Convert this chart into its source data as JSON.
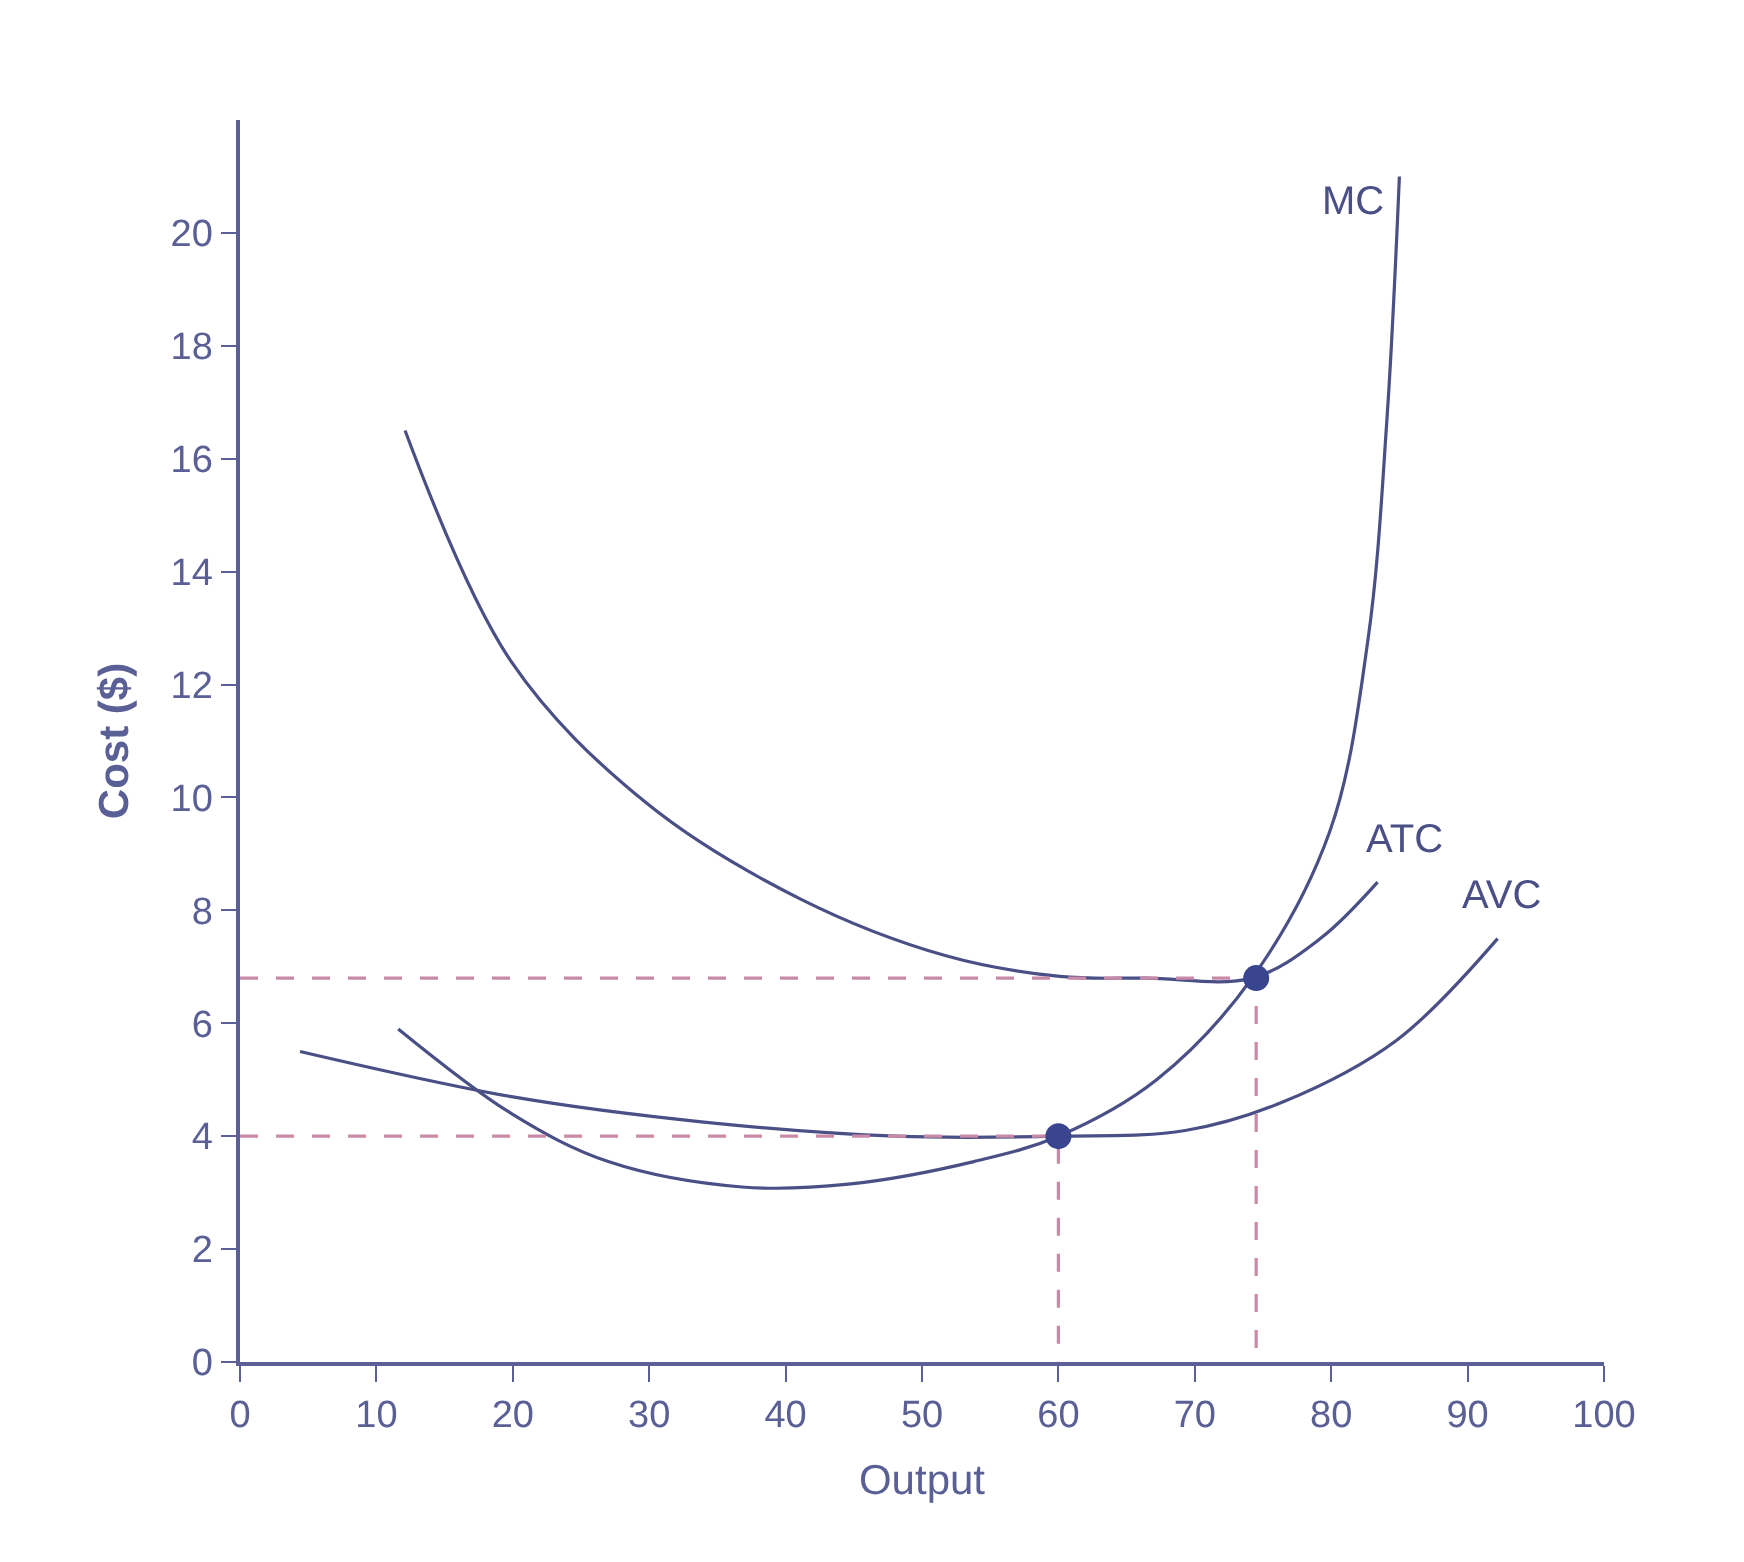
{
  "chart_data": {
    "type": "line",
    "xlabel": "Output",
    "ylabel": "Cost ($)",
    "xlim": [
      0,
      100
    ],
    "ylim": [
      0,
      22
    ],
    "xticks": [
      0,
      10,
      20,
      30,
      40,
      50,
      60,
      70,
      80,
      90,
      100
    ],
    "yticks": [
      0,
      2,
      4,
      6,
      8,
      10,
      12,
      14,
      16,
      18,
      20
    ],
    "legend": false,
    "marker": "none",
    "line_style": "solid",
    "series": [
      {
        "name": "MC",
        "color": "#4a4f86",
        "x": [
          11.6,
          19.9,
          27,
          36.8,
          44.6,
          53.8,
          60,
          67.2,
          74.2,
          79.9,
          82.7,
          84.1,
          85
        ],
        "values": [
          5.9,
          4.4,
          3.55,
          3.1,
          3.15,
          3.55,
          4.0,
          5.0,
          6.8,
          9.4,
          12.8,
          16.75,
          21
        ]
      },
      {
        "name": "ATC",
        "color": "#4a4f86",
        "x": [
          12.1,
          19.9,
          29.8,
          41.1,
          51.7,
          60.1,
          66.5,
          74.2,
          79.2,
          83.4
        ],
        "values": [
          16.5,
          12.4,
          9.9,
          8.2,
          7.2,
          6.83,
          6.8,
          6.8,
          7.5,
          8.5
        ]
      },
      {
        "name": "AVC",
        "color": "#4a4f86",
        "x": [
          4.4,
          19.9,
          34,
          48.1,
          60,
          69.3,
          76.4,
          84.8,
          92.2
        ],
        "values": [
          5.5,
          4.7,
          4.25,
          4.0,
          4.0,
          4.1,
          4.6,
          5.7,
          7.5
        ]
      },
      {
        "color": "#c98aa8",
        "line_style": "dashed",
        "x": [
          0,
          74.5,
          74.5
        ],
        "values": [
          6.8,
          6.8,
          0
        ]
      },
      {
        "color": "#c98aa8",
        "line_style": "dashed",
        "x": [
          0,
          60,
          60
        ],
        "values": [
          4,
          4,
          0
        ]
      },
      {
        "type": "scatter",
        "marker": "circle",
        "color": "#3a4590",
        "x": [
          60,
          74.5
        ],
        "values": [
          4,
          6.8
        ]
      }
    ]
  }
}
